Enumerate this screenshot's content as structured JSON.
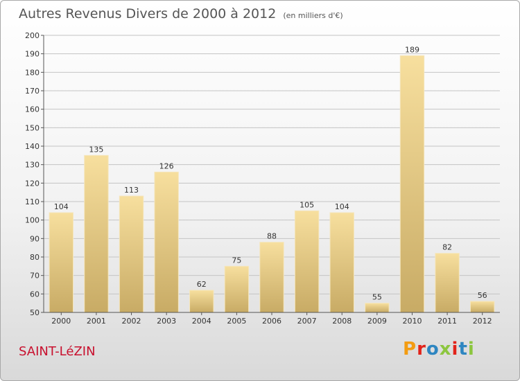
{
  "header": {
    "title": "Autres Revenus Divers de 2000 à 2012",
    "subtitle": "(en milliers d'€)"
  },
  "footer": {
    "commune": "SAINT-LéZIN",
    "logo_letters": [
      "P",
      "r",
      "o",
      "x",
      "i",
      "t",
      "i"
    ],
    "logo_colors": [
      "#f39c12",
      "#e2231a",
      "#2e86c1",
      "#8cc63f",
      "#e2231a",
      "#2e86c1",
      "#8cc63f"
    ]
  },
  "chart_data": {
    "type": "bar",
    "title": "Autres Revenus Divers de 2000 à 2012",
    "subtitle": "(en milliers d'€)",
    "categories": [
      "2000",
      "2001",
      "2002",
      "2003",
      "2004",
      "2005",
      "2006",
      "2007",
      "2008",
      "2009",
      "2010",
      "2011",
      "2012"
    ],
    "values": [
      104,
      135,
      113,
      126,
      62,
      75,
      88,
      105,
      104,
      55,
      189,
      82,
      56
    ],
    "ylim": [
      50,
      200
    ],
    "ytick_step": 10,
    "grid": true,
    "bar_color": "#e8c878"
  }
}
